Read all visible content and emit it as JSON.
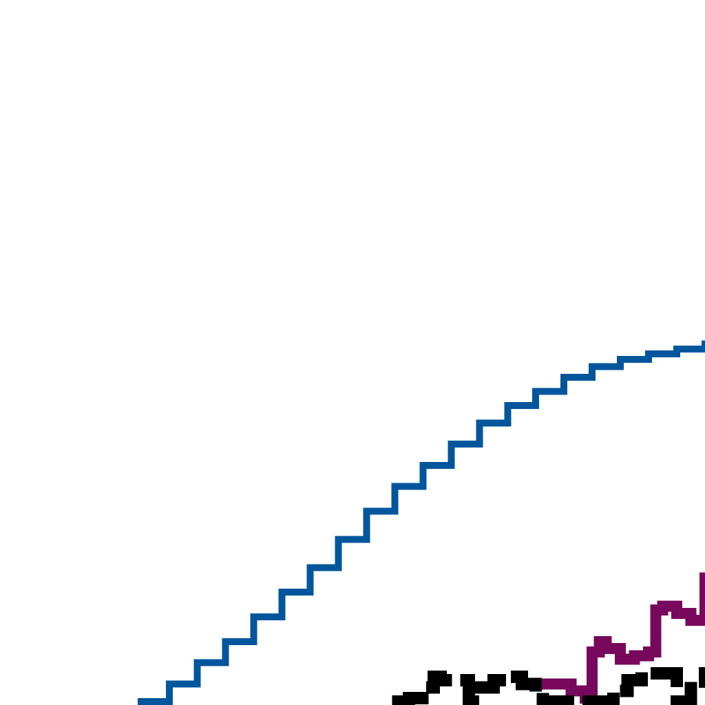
{
  "chart_data": {
    "type": "line",
    "title": "",
    "xlabel": "",
    "ylabel": "",
    "xlim": [
      0,
      100
    ],
    "ylim": [
      0,
      100
    ],
    "grid": false,
    "legend": "none",
    "series": [
      {
        "color": "#00569c",
        "stroke": "pixelated",
        "x": [
          20,
          24,
          28,
          32,
          36,
          40,
          44,
          48,
          52,
          56,
          60,
          64,
          68,
          72,
          76,
          80,
          84,
          88,
          92,
          96,
          100
        ],
        "y": [
          0.5,
          3,
          6,
          9,
          12.5,
          16,
          19.5,
          23.5,
          27.5,
          31,
          34,
          37,
          40,
          42.5,
          44.5,
          46.5,
          48,
          49,
          49.8,
          50.5,
          51.2
        ]
      },
      {
        "color": "#77085b",
        "stroke": "thick",
        "x": [
          77,
          79,
          81,
          83,
          84,
          85,
          86,
          88,
          90,
          92,
          93,
          94,
          96,
          98,
          100
        ],
        "y": [
          3,
          3,
          2,
          1,
          7.5,
          9,
          8,
          6.5,
          7,
          7.5,
          13.5,
          14,
          13,
          12,
          18
        ]
      },
      {
        "color": "#000000",
        "stroke": "dashed",
        "x": [
          56.5,
          58,
          60,
          61.5,
          62.5,
          66.5,
          68,
          70,
          72,
          74,
          76,
          77,
          85,
          87,
          89,
          91,
          96,
          98,
          100
        ],
        "y": [
          0.5,
          1,
          2.5,
          4,
          3.5,
          0.5,
          2.5,
          3.5,
          4,
          3,
          1.5,
          0.5,
          0.5,
          2,
          3.5,
          4.5,
          0.5,
          2.5,
          4.5
        ]
      }
    ]
  }
}
